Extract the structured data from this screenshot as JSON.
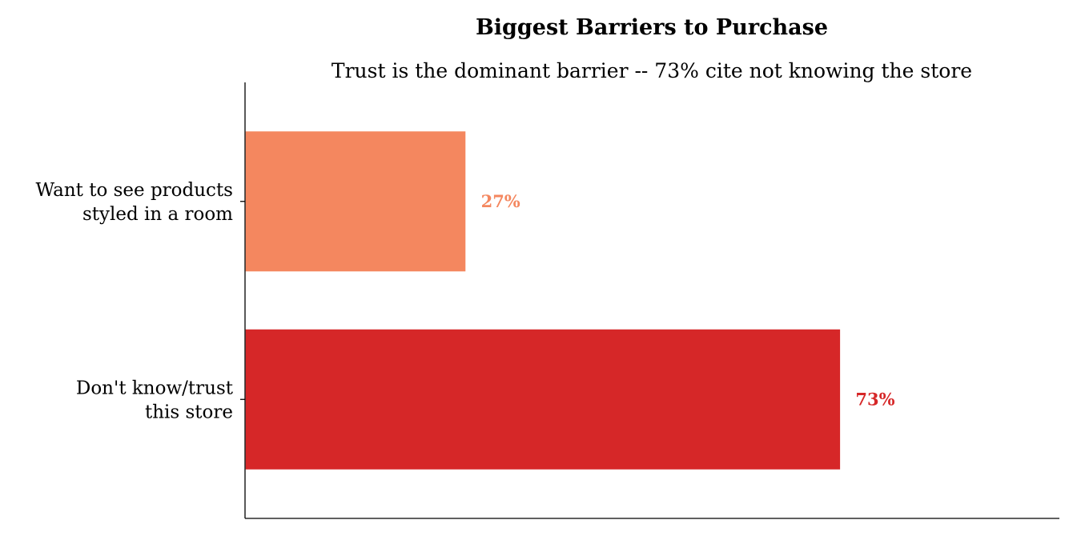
{
  "chart_data": {
    "type": "bar",
    "orientation": "horizontal",
    "title": "Biggest Barriers to Purchase",
    "subtitle": "Trust is the dominant barrier -- 73% cite not knowing the store",
    "xlabel": "",
    "ylabel": "",
    "xlim": [
      0,
      100
    ],
    "grid": false,
    "categories": [
      [
        "Want to see products",
        "styled in a room"
      ],
      [
        "Don't know/trust",
        "this store"
      ]
    ],
    "values": [
      27,
      73
    ],
    "data_labels": [
      "27%",
      "73%"
    ],
    "colors": [
      "#f4875f",
      "#d62728"
    ]
  }
}
